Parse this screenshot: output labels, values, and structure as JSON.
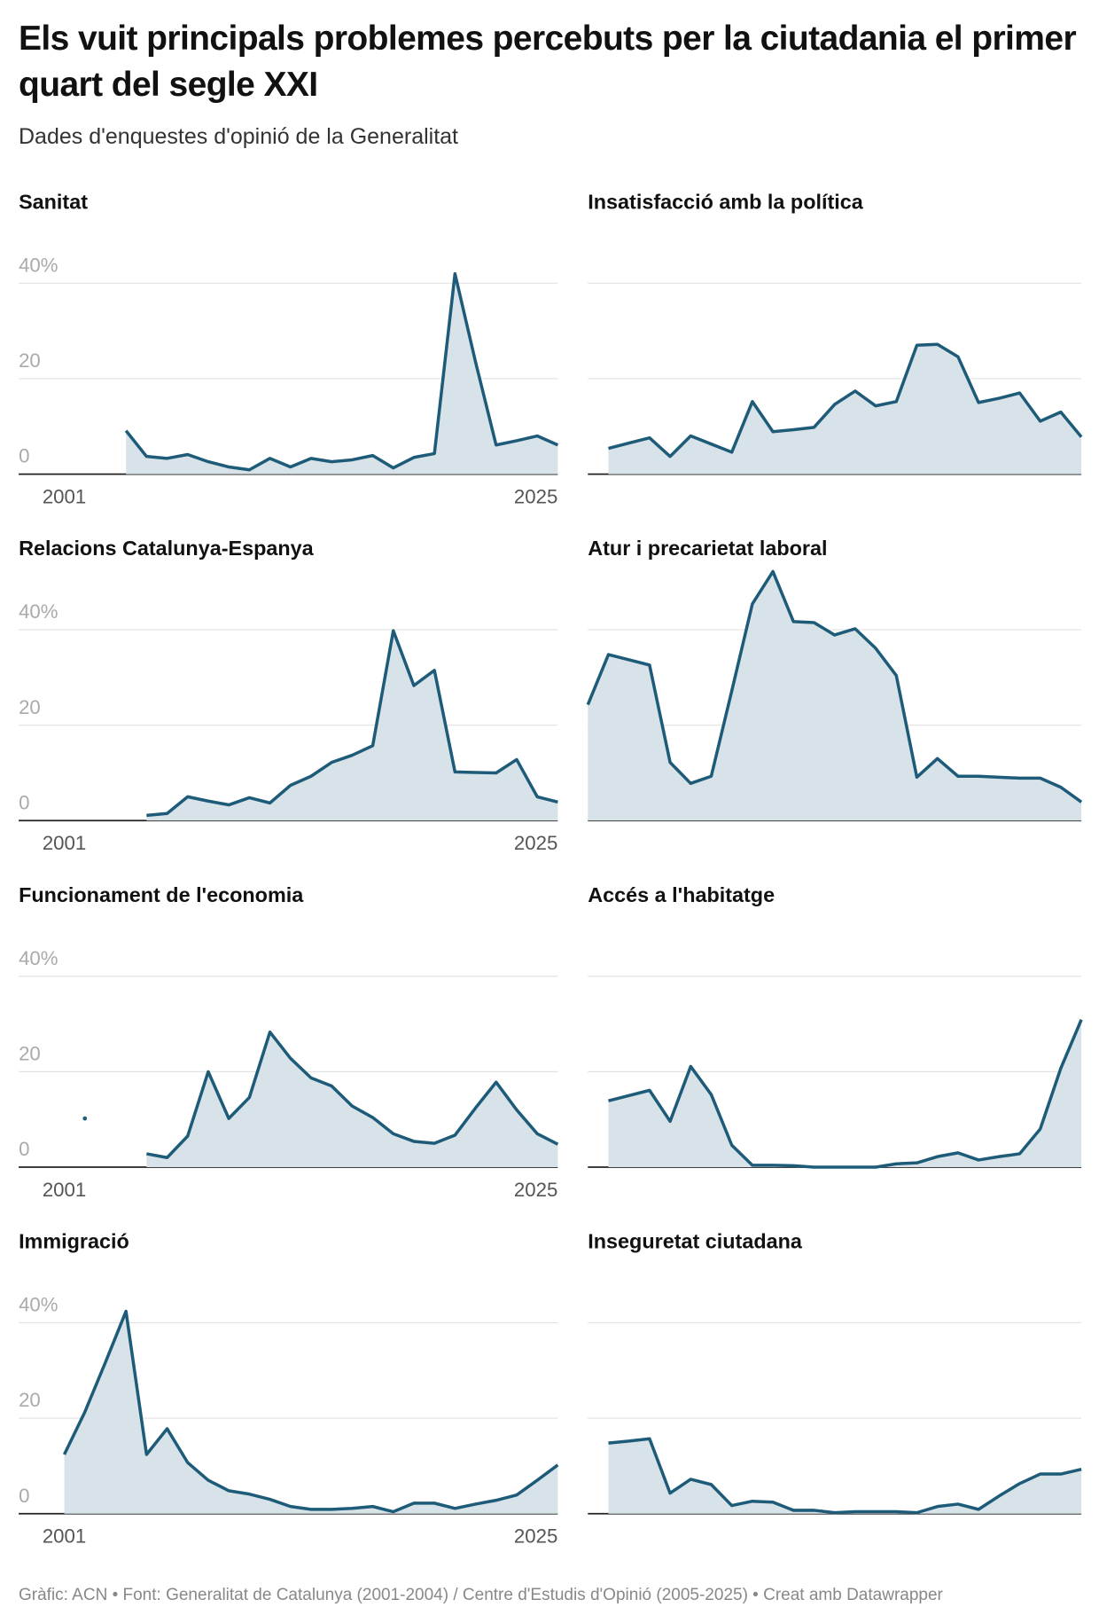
{
  "title": "Els vuit principals problemes percebuts per la ciutadania el primer quart del segle XXI",
  "subtitle": "Dades d'enquestes d'opinió de la Generalitat",
  "source": "Gràfic: ACN • Font: Generalitat de Catalunya (2001-2004) / Centre d'Estudis d'Opinió (2005-2025) • Creat amb Datawrapper",
  "chart_data": [
    {
      "type": "area",
      "title": "Sanitat",
      "color": "#1d5b79",
      "fill": "#d8e3e9",
      "grid": true,
      "x": [
        2001,
        2002,
        2003,
        2004,
        2005,
        2006,
        2007,
        2008,
        2009,
        2010,
        2011,
        2012,
        2013,
        2014,
        2015,
        2016,
        2017,
        2018,
        2019,
        2020,
        2021,
        2022,
        2023,
        2024,
        2025
      ],
      "values": [
        null,
        null,
        null,
        9.1,
        3.7,
        3.3,
        4.1,
        2.6,
        1.5,
        0.9,
        3.3,
        1.5,
        3.3,
        2.6,
        3.0,
        3.9,
        1.3,
        3.5,
        4.3,
        42,
        23.5,
        6.1,
        7.0,
        8.0,
        6.1
      ],
      "xlim": [
        2001,
        2025
      ],
      "xticks": [
        2001,
        2025
      ],
      "ylim": [
        0,
        50
      ],
      "yticks": [
        0,
        20,
        {
          "value": 40,
          "label": "40%"
        }
      ]
    },
    {
      "type": "area",
      "title": "Insatisfacció amb la política",
      "color": "#1d5b79",
      "fill": "#d8e3e9",
      "grid": true,
      "tick_labels": false,
      "x": [
        2001,
        2002,
        2003,
        2004,
        2005,
        2006,
        2007,
        2008,
        2009,
        2010,
        2011,
        2012,
        2013,
        2014,
        2015,
        2016,
        2017,
        2018,
        2019,
        2020,
        2021,
        2022,
        2023,
        2024,
        2025
      ],
      "values": [
        null,
        5.4,
        6.5,
        7.6,
        3.7,
        8.0,
        6.3,
        4.6,
        15.2,
        8.9,
        9.3,
        9.8,
        14.6,
        17.4,
        14.3,
        15.2,
        27.0,
        27.2,
        24.6,
        15.0,
        15.9,
        17.0,
        11.1,
        13.0,
        7.8
      ],
      "xlim": [
        2001,
        2025
      ],
      "ylim": [
        0,
        50
      ],
      "yticks": [
        0,
        20,
        40
      ]
    },
    {
      "type": "area",
      "title": "Relacions Catalunya-Espanya",
      "color": "#1d5b79",
      "fill": "#d8e3e9",
      "grid": true,
      "x": [
        2001,
        2002,
        2003,
        2004,
        2005,
        2006,
        2007,
        2008,
        2009,
        2010,
        2011,
        2012,
        2013,
        2014,
        2015,
        2016,
        2017,
        2018,
        2019,
        2020,
        2021,
        2022,
        2023,
        2024,
        2025
      ],
      "values": [
        null,
        null,
        null,
        null,
        1.1,
        1.5,
        5.0,
        4.1,
        3.3,
        4.8,
        3.7,
        7.4,
        9.3,
        12.2,
        13.7,
        15.7,
        39.8,
        28.3,
        31.5,
        10.2,
        10.1,
        10.0,
        12.8,
        5.0,
        3.9
      ],
      "xlim": [
        2001,
        2025
      ],
      "xticks": [
        2001,
        2025
      ],
      "ylim": [
        0,
        50
      ],
      "yticks": [
        0,
        20,
        {
          "value": 40,
          "label": "40%"
        }
      ]
    },
    {
      "type": "area",
      "title": "Atur i precarietat laboral",
      "color": "#1d5b79",
      "fill": "#d8e3e9",
      "grid": true,
      "tick_labels": false,
      "x": [
        2001,
        2002,
        2003,
        2004,
        2005,
        2006,
        2007,
        2008,
        2009,
        2010,
        2011,
        2012,
        2013,
        2014,
        2015,
        2016,
        2017,
        2018,
        2019,
        2020,
        2021,
        2022,
        2023,
        2024,
        2025
      ],
      "values": [
        24.3,
        34.8,
        33.7,
        32.6,
        12.2,
        7.8,
        9.3,
        27.2,
        45.4,
        52.2,
        41.7,
        41.5,
        38.9,
        40.2,
        36.1,
        30.4,
        9.1,
        13.0,
        9.3,
        9.3,
        9.1,
        8.9,
        8.9,
        7.0,
        3.9
      ],
      "xlim": [
        2001,
        2025
      ],
      "ylim": [
        0,
        50
      ],
      "yticks": [
        0,
        20,
        40
      ]
    },
    {
      "type": "area",
      "title": "Funcionament de l'economia",
      "color": "#1d5b79",
      "fill": "#d8e3e9",
      "grid": true,
      "x": [
        2001,
        2002,
        2003,
        2004,
        2005,
        2006,
        2007,
        2008,
        2009,
        2010,
        2011,
        2012,
        2013,
        2014,
        2015,
        2016,
        2017,
        2018,
        2019,
        2020,
        2021,
        2022,
        2023,
        2024,
        2025
      ],
      "values": [
        null,
        10.2,
        null,
        null,
        2.8,
        2.0,
        6.5,
        20.0,
        10.2,
        14.6,
        28.3,
        22.8,
        18.7,
        17.0,
        12.8,
        10.4,
        7.0,
        5.4,
        5.0,
        6.7,
        12.4,
        17.8,
        12.0,
        7.0,
        4.8
      ],
      "xlim": [
        2001,
        2025
      ],
      "xticks": [
        2001,
        2025
      ],
      "ylim": [
        0,
        50
      ],
      "yticks": [
        0,
        20,
        {
          "value": 40,
          "label": "40%"
        }
      ]
    },
    {
      "type": "area",
      "title": "Accés a l'habitatge",
      "color": "#1d5b79",
      "fill": "#d8e3e9",
      "grid": true,
      "tick_labels": false,
      "x": [
        2001,
        2002,
        2003,
        2004,
        2005,
        2006,
        2007,
        2008,
        2009,
        2010,
        2011,
        2012,
        2013,
        2014,
        2015,
        2016,
        2017,
        2018,
        2019,
        2020,
        2021,
        2022,
        2023,
        2024,
        2025
      ],
      "values": [
        null,
        13.9,
        15.0,
        16.1,
        9.6,
        21.1,
        15.2,
        4.6,
        0.4,
        0.4,
        0.3,
        0,
        0,
        0,
        0,
        0.7,
        0.9,
        2.2,
        3.0,
        1.5,
        2.2,
        2.8,
        8.0,
        20.7,
        30.9
      ],
      "xlim": [
        2001,
        2025
      ],
      "ylim": [
        0,
        50
      ],
      "yticks": [
        0,
        20,
        40
      ]
    },
    {
      "type": "area",
      "title": "Immigració",
      "color": "#1d5b79",
      "fill": "#d8e3e9",
      "grid": true,
      "x": [
        2001,
        2002,
        2003,
        2004,
        2005,
        2006,
        2007,
        2008,
        2009,
        2010,
        2011,
        2012,
        2013,
        2014,
        2015,
        2016,
        2017,
        2018,
        2019,
        2020,
        2021,
        2022,
        2023,
        2024,
        2025
      ],
      "values": [
        12.4,
        21.3,
        31.7,
        42.4,
        12.4,
        17.8,
        10.7,
        7.0,
        4.8,
        4.1,
        3.0,
        1.5,
        0.9,
        0.9,
        1.1,
        1.5,
        0.4,
        2.2,
        2.2,
        1.1,
        2.0,
        2.8,
        3.9,
        7.0,
        10.2
      ],
      "xlim": [
        2001,
        2025
      ],
      "xticks": [
        2001,
        2025
      ],
      "ylim": [
        0,
        50
      ],
      "yticks": [
        0,
        20,
        {
          "value": 40,
          "label": "40%"
        }
      ]
    },
    {
      "type": "area",
      "title": "Inseguretat ciutadana",
      "color": "#1d5b79",
      "fill": "#d8e3e9",
      "grid": true,
      "tick_labels": false,
      "x": [
        2001,
        2002,
        2003,
        2004,
        2005,
        2006,
        2007,
        2008,
        2009,
        2010,
        2011,
        2012,
        2013,
        2014,
        2015,
        2016,
        2017,
        2018,
        2019,
        2020,
        2021,
        2022,
        2023,
        2024,
        2025
      ],
      "values": [
        null,
        14.8,
        15.2,
        15.7,
        4.3,
        7.2,
        6.1,
        1.7,
        2.6,
        2.4,
        0.7,
        0.7,
        0.2,
        0.4,
        0.4,
        0.4,
        0.2,
        1.5,
        2.0,
        0.9,
        3.7,
        6.3,
        8.3,
        8.3,
        9.3
      ],
      "xlim": [
        2001,
        2025
      ],
      "ylim": [
        0,
        50
      ],
      "yticks": [
        0,
        20,
        40
      ]
    }
  ]
}
